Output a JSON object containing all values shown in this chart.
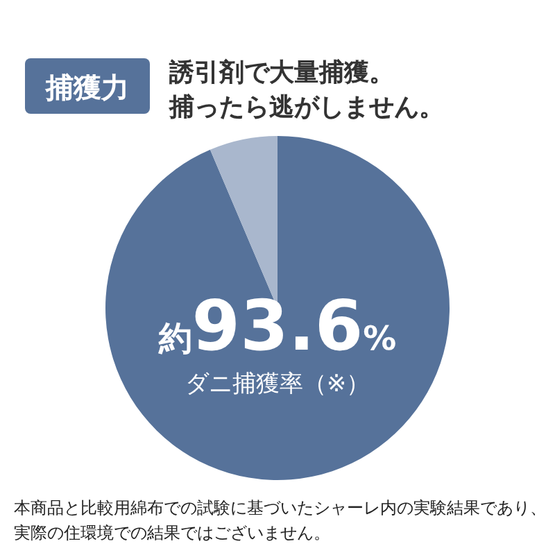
{
  "chart_data": {
    "type": "pie",
    "title": "捕獲力",
    "subtitle": "誘引剤で大量捕獲。捕ったら逃がしません。",
    "categories": [
      "ダニ捕獲率（※）",
      null
    ],
    "values": [
      93.6,
      6.4
    ],
    "value_labels": [
      "約93.6%",
      null
    ],
    "colors": [
      "#56729a",
      "#a9b7cd"
    ],
    "annotations": [
      "本商品と比較用綿布での試験に基づいたシャーレ内の実験結果であり、",
      "実際の住環境での結果ではございません。"
    ]
  }
}
